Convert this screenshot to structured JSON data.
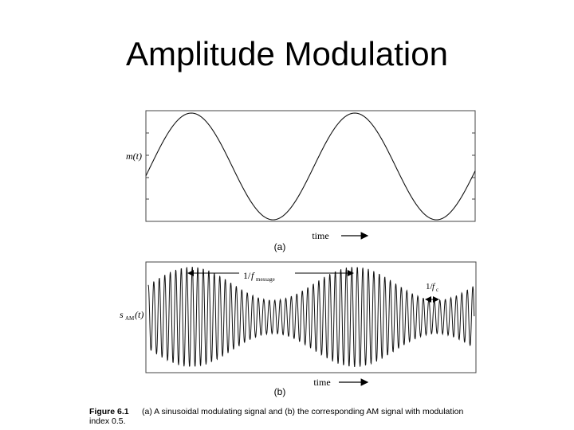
{
  "slide": {
    "title": "Amplitude Modulation"
  },
  "panel_a": {
    "ylabel": "m(t)",
    "xlabel": "time",
    "label": "(a)"
  },
  "panel_b": {
    "ylabel_main": "s",
    "ylabel_sub": "AM",
    "ylabel_tail": "(t)",
    "xlabel": "time",
    "label": "(b)",
    "annotation_message_prefix": "1/",
    "annotation_message_f": "f",
    "annotation_message_sub": "message",
    "annotation_carrier_prefix": "1/",
    "annotation_carrier_f": "f",
    "annotation_carrier_sub": "c"
  },
  "caption": {
    "figure_label": "Figure 6.1",
    "line1": "(a) A sinusoidal modulating signal and (b) the corresponding AM signal with modulation",
    "line2": "index 0.5."
  }
}
